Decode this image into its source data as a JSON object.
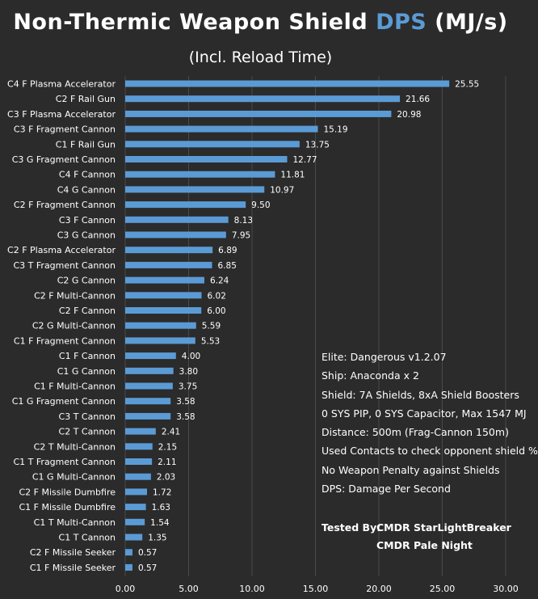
{
  "title": {
    "prefix": "Non-Thermic Weapon Shield ",
    "accent": "DPS",
    "suffix": " (MJ/s)"
  },
  "subtitle": "(Incl. Reload Time)",
  "colors": {
    "background": "#2b2b2b",
    "bar": "#5b9bd5",
    "gridline": "#4a4a4a",
    "text": "#ffffff",
    "accent": "#5b9bd5"
  },
  "notes": [
    "Elite: Dangerous v1.2.07",
    "Ship: Anaconda x 2",
    "Shield: 7A Shields, 8xA Shield Boosters",
    "0 SYS PIP, 0 SYS Capacitor, Max 1547 MJ",
    "Distance: 500m (Frag-Cannon 150m)",
    "Used Contacts to check opponent shield %",
    "No Weapon Penalty against Shields",
    "DPS: Damage Per Second"
  ],
  "credits": {
    "label": "Tested By:",
    "name1": "CMDR StarLightBreaker",
    "name2": "CMDR Pale Night"
  },
  "chart_data": {
    "type": "bar",
    "orientation": "horizontal",
    "title": "Non-Thermic Weapon Shield DPS (MJ/s)",
    "subtitle": "(Incl. Reload Time)",
    "xlim": [
      0,
      30
    ],
    "xticks": [
      "0.00",
      "5.00",
      "10.00",
      "15.00",
      "20.00",
      "25.00",
      "30.00"
    ],
    "grid": "vertical",
    "legend": "none",
    "categories": [
      "C4 F Plasma Accelerator",
      "C2 F Rail Gun",
      "C3 F Plasma Accelerator",
      "C3 F Fragment Cannon",
      "C1 F Rail Gun",
      "C3 G Fragment Cannon",
      "C4 F Cannon",
      "C4 G Cannon",
      "C2 F Fragment Cannon",
      "C3 F Cannon",
      "C3 G Cannon",
      "C2 F Plasma Accelerator",
      "C3 T Fragment Cannon",
      "C2 G Cannon",
      "C2 F Multi-Cannon",
      "C2 F Cannon",
      "C2 G Multi-Cannon",
      "C1 F Fragment Cannon",
      "C1 F Cannon",
      "C1 G Cannon",
      "C1 F Multi-Cannon",
      "C1 G Fragment Cannon",
      "C3 T Cannon",
      "C2 T Cannon",
      "C2 T Multi-Cannon",
      "C1 T Fragment Cannon",
      "C1 G Multi-Cannon",
      "C2 F Missile Dumbfire",
      "C1 F Missile Dumbfire",
      "C1 T Multi-Cannon",
      "C1 T Cannon",
      "C2 F Missile Seeker",
      "C1 F Missile Seeker"
    ],
    "values": [
      25.55,
      21.66,
      20.98,
      15.19,
      13.75,
      12.77,
      11.81,
      10.97,
      9.5,
      8.13,
      7.95,
      6.89,
      6.85,
      6.24,
      6.02,
      6.0,
      5.59,
      5.53,
      4.0,
      3.8,
      3.75,
      3.58,
      3.58,
      2.41,
      2.15,
      2.11,
      2.03,
      1.72,
      1.63,
      1.54,
      1.35,
      0.57,
      0.57
    ],
    "value_labels": [
      "25.55",
      "21.66",
      "20.98",
      "15.19",
      "13.75",
      "12.77",
      "11.81",
      "10.97",
      "9.50",
      "8.13",
      "7.95",
      "6.89",
      "6.85",
      "6.24",
      "6.02",
      "6.00",
      "5.59",
      "5.53",
      "4.00",
      "3.80",
      "3.75",
      "3.58",
      "3.58",
      "2.41",
      "2.15",
      "2.11",
      "2.03",
      "1.72",
      "1.63",
      "1.54",
      "1.35",
      "0.57",
      "0.57"
    ]
  }
}
